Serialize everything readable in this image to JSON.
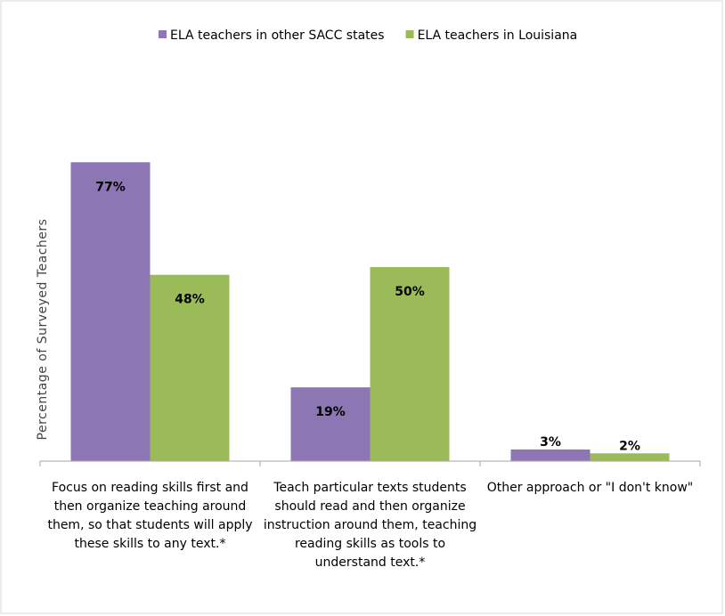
{
  "chart_data": {
    "type": "bar",
    "y_label": "Percentage of Surveyed Teachers",
    "categories": [
      "Focus on reading skills first and then organize teaching around them, so that students will apply these skills to any text.*",
      "Teach particular texts students should read and then organize instruction around them, teaching reading skills as tools to understand text.*",
      "Other approach or \"I don't know\""
    ],
    "series": [
      {
        "name": "ELA teachers in other SACC states",
        "color": "#8c76b3",
        "values": [
          77,
          19,
          3
        ],
        "value_labels": [
          "77%",
          "19%",
          "3%"
        ]
      },
      {
        "name": "ELA teachers in Louisiana",
        "color": "#9bbb59",
        "values": [
          48,
          50,
          2
        ],
        "value_labels": [
          "48%",
          "50%",
          "2%"
        ]
      }
    ],
    "ylim": [
      0,
      100
    ],
    "legend": "top"
  }
}
